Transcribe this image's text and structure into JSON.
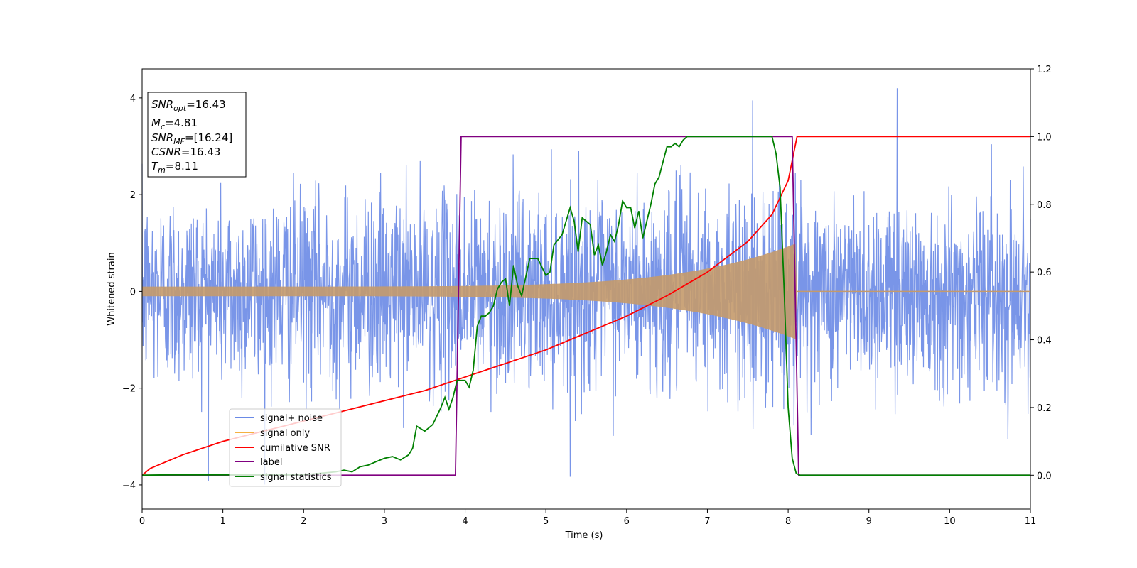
{
  "chart_data": {
    "type": "line",
    "xlabel": "Time (s)",
    "ylabel": "Whitened strain",
    "xlim": [
      0,
      11
    ],
    "ylim": [
      -4.5,
      4.6
    ],
    "y2lim": [
      -0.1,
      1.2
    ],
    "xticks": [
      "0",
      "1",
      "2",
      "3",
      "4",
      "5",
      "6",
      "7",
      "8",
      "9",
      "10",
      "11"
    ],
    "yticks": [
      "4",
      "2",
      "0",
      "−2",
      "−4"
    ],
    "y2ticks": [
      "0.0",
      "0.2",
      "0.4",
      "0.6",
      "0.8",
      "1.0",
      "1.2"
    ],
    "legend_position": "lower-left",
    "info_box": {
      "snr_opt": {
        "label": "SNR",
        "sub": "opt",
        "value": "=16.43"
      },
      "mc": {
        "label": "M",
        "sub": "c",
        "value": "=4.81"
      },
      "snr_mf": {
        "label": "SNR",
        "sub": "MF",
        "value": "=[16.24]"
      },
      "csnr": {
        "label": "CSNR",
        "value": "=16.43"
      },
      "tm": {
        "label": "T",
        "sub": "m",
        "value": "=8.11"
      }
    },
    "series": [
      {
        "name": "signal+ noise",
        "color": "#6a8ae6",
        "axis": "left",
        "description": "noise amplitude ~±2.5 std 1, spikes to ~4.2 at t=9.35",
        "noise_sigma": 1.0,
        "t_end": 11
      },
      {
        "name": "signal only",
        "color": "#f5b041",
        "axis": "left",
        "description": "chirp, amplitude grows from ~0.1 to ~1.0 at t=8.1 then 0",
        "amp_start": 0.1,
        "amp_peak": 1.0,
        "t_merge": 8.11
      },
      {
        "name": "cumilative SNR",
        "color": "#ff0000",
        "axis": "right",
        "x": [
          0,
          0.1,
          0.5,
          1,
          1.5,
          2,
          2.5,
          3,
          3.5,
          4,
          4.5,
          5,
          5.5,
          6,
          6.5,
          7,
          7.5,
          7.8,
          8.0,
          8.11,
          11
        ],
        "y": [
          0.0,
          0.02,
          0.06,
          0.1,
          0.13,
          0.16,
          0.19,
          0.22,
          0.25,
          0.29,
          0.33,
          0.37,
          0.42,
          0.47,
          0.53,
          0.6,
          0.69,
          0.77,
          0.87,
          1.0,
          1.0
        ]
      },
      {
        "name": "label",
        "color": "#800080",
        "axis": "right",
        "x": [
          0,
          3.88,
          3.95,
          8.05,
          8.13,
          11
        ],
        "y": [
          0,
          0,
          1,
          1,
          0,
          0
        ]
      },
      {
        "name": "signal statistics",
        "color": "#008000",
        "axis": "right",
        "x": [
          0,
          0.3,
          1,
          2,
          2.4,
          2.5,
          2.6,
          2.7,
          2.8,
          2.9,
          3.0,
          3.1,
          3.2,
          3.3,
          3.35,
          3.4,
          3.5,
          3.6,
          3.7,
          3.75,
          3.8,
          3.85,
          3.9,
          4.0,
          4.05,
          4.1,
          4.15,
          4.2,
          4.25,
          4.3,
          4.35,
          4.4,
          4.45,
          4.5,
          4.55,
          4.6,
          4.65,
          4.7,
          4.8,
          4.9,
          5.0,
          5.05,
          5.1,
          5.2,
          5.3,
          5.35,
          5.4,
          5.45,
          5.5,
          5.55,
          5.6,
          5.65,
          5.7,
          5.75,
          5.8,
          5.85,
          5.9,
          5.95,
          6.0,
          6.05,
          6.1,
          6.15,
          6.2,
          6.3,
          6.35,
          6.4,
          6.5,
          6.55,
          6.6,
          6.65,
          6.7,
          6.75,
          6.8,
          6.9,
          7.0,
          7.1,
          7.3,
          7.5,
          7.7,
          7.8,
          7.85,
          7.9,
          7.95,
          8.0,
          8.05,
          8.1,
          8.15,
          8.3,
          11
        ],
        "y": [
          0,
          0.001,
          0.001,
          0.001,
          0.01,
          0.015,
          0.01,
          0.025,
          0.03,
          0.04,
          0.05,
          0.055,
          0.045,
          0.06,
          0.08,
          0.145,
          0.13,
          0.15,
          0.2,
          0.23,
          0.195,
          0.23,
          0.28,
          0.28,
          0.26,
          0.31,
          0.44,
          0.47,
          0.47,
          0.48,
          0.5,
          0.55,
          0.57,
          0.58,
          0.5,
          0.62,
          0.56,
          0.53,
          0.64,
          0.64,
          0.59,
          0.6,
          0.68,
          0.71,
          0.79,
          0.75,
          0.66,
          0.76,
          0.75,
          0.74,
          0.65,
          0.68,
          0.62,
          0.66,
          0.71,
          0.69,
          0.74,
          0.81,
          0.79,
          0.79,
          0.73,
          0.78,
          0.7,
          0.8,
          0.86,
          0.88,
          0.97,
          0.97,
          0.98,
          0.97,
          0.99,
          1.0,
          1.0,
          1.0,
          1.0,
          1.0,
          1.0,
          1.0,
          1.0,
          1.0,
          0.95,
          0.85,
          0.55,
          0.2,
          0.05,
          0.005,
          0.0,
          0.0,
          0.0
        ]
      }
    ]
  }
}
